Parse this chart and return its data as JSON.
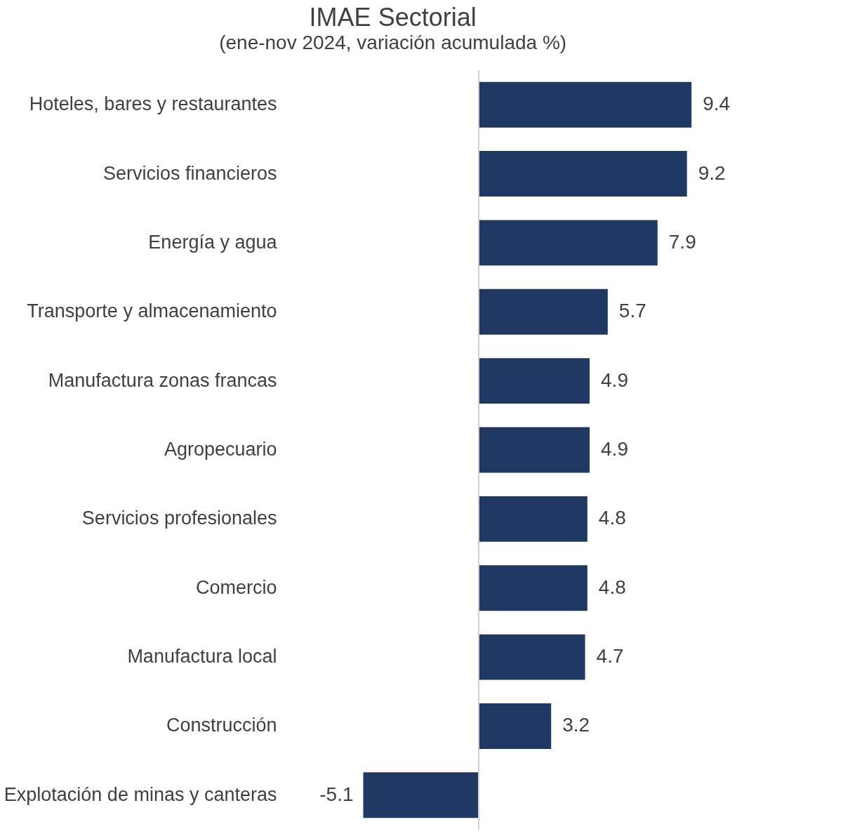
{
  "chart_data": {
    "type": "bar",
    "orientation": "horizontal",
    "title": "IMAE Sectorial",
    "subtitle": "(ene-nov 2024, variación acumulada %)",
    "categories": [
      "Hoteles, bares y restaurantes",
      "Servicios financieros",
      "Energía y agua",
      "Transporte y almacenamiento",
      "Manufactura zonas francas",
      "Agropecuario",
      "Servicios profesionales",
      "Comercio",
      "Manufactura local",
      "Construcción",
      "Explotación de minas y canteras"
    ],
    "values": [
      9.4,
      9.2,
      7.9,
      5.7,
      4.9,
      4.9,
      4.8,
      4.8,
      4.7,
      3.2,
      -5.1
    ],
    "color": "#203864",
    "data_labels": true
  }
}
